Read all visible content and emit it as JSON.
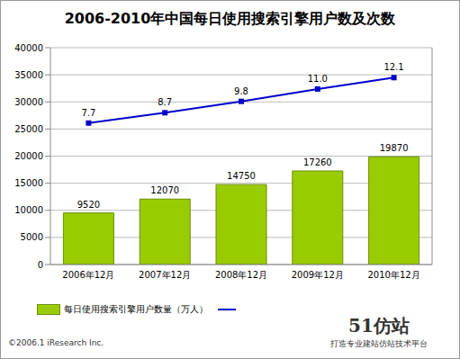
{
  "chart_data": {
    "type": "bar",
    "title": "2006-2010年中国每日使用搜索引擎用户数及次数",
    "categories": [
      "2006年12月",
      "2007年12月",
      "2008年12月",
      "2009年12月",
      "2010年12月"
    ],
    "series": [
      {
        "name": "每日使用搜索引擎用户数量（万人）",
        "type": "bar",
        "color": "#99cc00",
        "values": [
          9520,
          12070,
          14750,
          17260,
          19870
        ]
      },
      {
        "type": "line",
        "axis": "y2",
        "color": "#0000cc",
        "marker": "square",
        "values": [
          7.7,
          8.7,
          9.8,
          11.0,
          12.1
        ],
        "value_labels": [
          "7.7",
          "8.7",
          "9.8",
          "11.0",
          "12.1"
        ]
      }
    ],
    "ylim": [
      0,
      40000
    ],
    "yticks": [
      0,
      5000,
      10000,
      15000,
      20000,
      25000,
      30000,
      35000,
      40000
    ],
    "y2lim": [
      -6,
      15
    ],
    "y2ticks": [],
    "grid": true,
    "data_labels": true,
    "legend": "bottom",
    "source": "©2006.1 iResearch Inc.",
    "annotations": [
      "51仿站",
      "打造专业建站仿站技术平台"
    ]
  }
}
